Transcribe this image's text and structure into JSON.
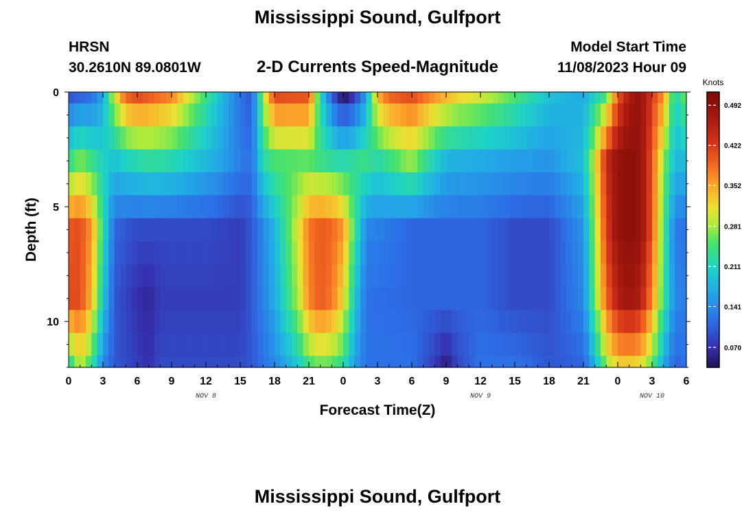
{
  "header": {
    "title": "Mississippi Sound, Gulfport",
    "station_id": "HRSN",
    "station_coords": "30.2610N  89.0801W",
    "product": "2-D Currents Speed-Magnitude",
    "model_label": "Model Start Time",
    "model_time": "11/08/2023 Hour 09"
  },
  "footer": {
    "title": "Mississippi Sound, Gulfport"
  },
  "chart_data": {
    "type": "heatmap",
    "title": "2-D Currents Speed-Magnitude",
    "xlabel": "Forecast Time(Z)",
    "ylabel": "Depth (ft)",
    "x_unit": "hours from 00Z Nov 8 (UTC)",
    "x_range": [
      0,
      54
    ],
    "x_ticks": [
      0,
      3,
      6,
      9,
      12,
      15,
      18,
      21,
      24,
      27,
      30,
      33,
      36,
      39,
      42,
      45,
      48,
      51,
      54
    ],
    "x_tick_labels": [
      "0",
      "3",
      "6",
      "9",
      "12",
      "15",
      "18",
      "21",
      "0",
      "3",
      "6",
      "9",
      "12",
      "15",
      "18",
      "21",
      "0",
      "3",
      "6"
    ],
    "date_labels": [
      {
        "x": 12,
        "text": "NOV 8"
      },
      {
        "x": 36,
        "text": "NOV 9"
      },
      {
        "x": 51,
        "text": "NOV 10"
      }
    ],
    "y_range": [
      0,
      12
    ],
    "y_ticks": [
      0,
      5,
      10
    ],
    "y_tick_labels": [
      "0",
      "5",
      "10"
    ],
    "y_inverted": true,
    "depths_ft": [
      0,
      1,
      2,
      3,
      4,
      5,
      6,
      7,
      8,
      9,
      10,
      11,
      12
    ],
    "colorbar": {
      "title": "Knots",
      "min": 0.035,
      "max": 0.515,
      "ticks": [
        0.07,
        0.141,
        0.211,
        0.281,
        0.352,
        0.422,
        0.492
      ],
      "tick_labels": [
        "0.070",
        "0.141",
        "0.211",
        "0.281",
        "0.352",
        "0.422",
        "0.492"
      ],
      "colormap": "rainbow (dark blue - blue - cyan - green - yellow - orange - red - dark red)"
    },
    "speed_knots_by_depth": [
      {
        "depth_ft": 0,
        "x": [
          0,
          2,
          3,
          4,
          5,
          6,
          9,
          11,
          13,
          15,
          16,
          17,
          18,
          21,
          22,
          23,
          24,
          25,
          26,
          27,
          28,
          30,
          32,
          34,
          36,
          39,
          42,
          45,
          47,
          48,
          49,
          50,
          52,
          53,
          54
        ],
        "v": [
          0.1,
          0.12,
          0.17,
          0.3,
          0.39,
          0.41,
          0.37,
          0.28,
          0.2,
          0.12,
          0.1,
          0.28,
          0.41,
          0.4,
          0.22,
          0.11,
          0.04,
          0.08,
          0.16,
          0.34,
          0.39,
          0.41,
          0.36,
          0.32,
          0.3,
          0.25,
          0.19,
          0.17,
          0.25,
          0.4,
          0.47,
          0.49,
          0.36,
          0.21,
          0.27
        ]
      },
      {
        "depth_ft": 3,
        "x": [
          0,
          1,
          3,
          4,
          5,
          7,
          9,
          13,
          15,
          16,
          17,
          18,
          21,
          22,
          24,
          26,
          27,
          29,
          30,
          31,
          33,
          36,
          39,
          42,
          45,
          46,
          47,
          48,
          49,
          50,
          51,
          52,
          53,
          54
        ],
        "v": [
          0.23,
          0.27,
          0.21,
          0.19,
          0.21,
          0.23,
          0.22,
          0.17,
          0.13,
          0.12,
          0.22,
          0.25,
          0.26,
          0.24,
          0.22,
          0.24,
          0.22,
          0.26,
          0.28,
          0.24,
          0.18,
          0.17,
          0.16,
          0.15,
          0.19,
          0.3,
          0.44,
          0.49,
          0.5,
          0.49,
          0.4,
          0.28,
          0.18,
          0.19
        ]
      },
      {
        "depth_ft": 6,
        "x": [
          0,
          1,
          2,
          3,
          4,
          6,
          8,
          12,
          15,
          16,
          18,
          20,
          21,
          22,
          23,
          24,
          25,
          26,
          30,
          36,
          39,
          42,
          45,
          46,
          47,
          48,
          49,
          50,
          51,
          52,
          53,
          54
        ],
        "v": [
          0.4,
          0.41,
          0.36,
          0.23,
          0.11,
          0.09,
          0.09,
          0.09,
          0.08,
          0.1,
          0.18,
          0.3,
          0.38,
          0.4,
          0.39,
          0.36,
          0.24,
          0.14,
          0.11,
          0.11,
          0.09,
          0.09,
          0.15,
          0.28,
          0.42,
          0.49,
          0.5,
          0.49,
          0.4,
          0.25,
          0.13,
          0.12
        ]
      },
      {
        "depth_ft": 9,
        "x": [
          0,
          1,
          2,
          3,
          4,
          6,
          7,
          8,
          12,
          15,
          16,
          18,
          20,
          21,
          22,
          23,
          24,
          25,
          26,
          30,
          36,
          39,
          42,
          45,
          46,
          47,
          48,
          49,
          50,
          51,
          52,
          53,
          54
        ],
        "v": [
          0.41,
          0.41,
          0.34,
          0.2,
          0.1,
          0.07,
          0.06,
          0.08,
          0.08,
          0.08,
          0.1,
          0.17,
          0.28,
          0.37,
          0.4,
          0.38,
          0.32,
          0.2,
          0.12,
          0.11,
          0.11,
          0.09,
          0.09,
          0.14,
          0.26,
          0.39,
          0.46,
          0.48,
          0.46,
          0.37,
          0.24,
          0.14,
          0.13
        ]
      },
      {
        "depth_ft": 12,
        "x": [
          0,
          1,
          2,
          3,
          4,
          6,
          7,
          8,
          12,
          15,
          16,
          18,
          20,
          21,
          22,
          23,
          24,
          25,
          26,
          30,
          32,
          33,
          34,
          36,
          39,
          42,
          45,
          46,
          47,
          48,
          49,
          50,
          51,
          52,
          53,
          54
        ],
        "v": [
          0.22,
          0.3,
          0.24,
          0.14,
          0.1,
          0.08,
          0.07,
          0.09,
          0.09,
          0.09,
          0.1,
          0.14,
          0.2,
          0.25,
          0.27,
          0.26,
          0.23,
          0.16,
          0.12,
          0.12,
          0.08,
          0.05,
          0.09,
          0.12,
          0.12,
          0.1,
          0.11,
          0.18,
          0.28,
          0.33,
          0.33,
          0.32,
          0.26,
          0.17,
          0.11,
          0.12
        ]
      }
    ]
  }
}
